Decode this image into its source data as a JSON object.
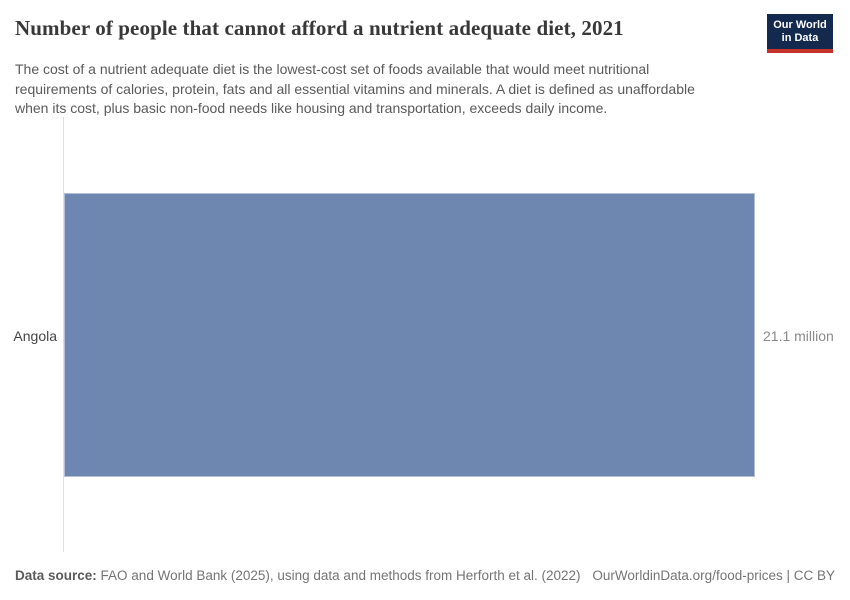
{
  "header": {
    "title": "Number of people that cannot afford a nutrient adequate diet, 2021",
    "subtitle_lines": [
      "The cost of a nutrient adequate diet is the lowest-cost set of foods available that would meet nutritional",
      "requirements of calories, protein, fats and all essential vitamins and minerals. A diet is defined as unaffordable",
      "when its cost, plus basic non-food needs like housing and transportation, exceeds daily income."
    ],
    "logo": {
      "line1": "Our World",
      "line2": "in Data"
    }
  },
  "chart_data": {
    "type": "bar",
    "orientation": "horizontal",
    "title": "Number of people that cannot afford a nutrient adequate diet, 2021",
    "categories": [
      "Angola"
    ],
    "values": [
      21100000
    ],
    "value_labels": [
      "21.1 million"
    ],
    "xlabel": "",
    "ylabel": "",
    "xlim": [
      0,
      21100000
    ],
    "grid": false,
    "legend": false,
    "bar_color": "#6d87b0"
  },
  "footer": {
    "datasource_label": "Data source:",
    "datasource_text": "FAO and World Bank (2025), using data and methods from Herforth et al. (2022)",
    "link_text": "OurWorldinData.org/food-prices | CC BY"
  },
  "colors": {
    "bar": "#6d87b0",
    "bar_border": "#b3bfd6",
    "logo_background": "#14294e",
    "logo_accent": "#c5332a",
    "title_text": "#383838",
    "subtitle_text": "#5a5a5a",
    "axis_line": "#dedede",
    "value_text": "#8a8a8a"
  }
}
